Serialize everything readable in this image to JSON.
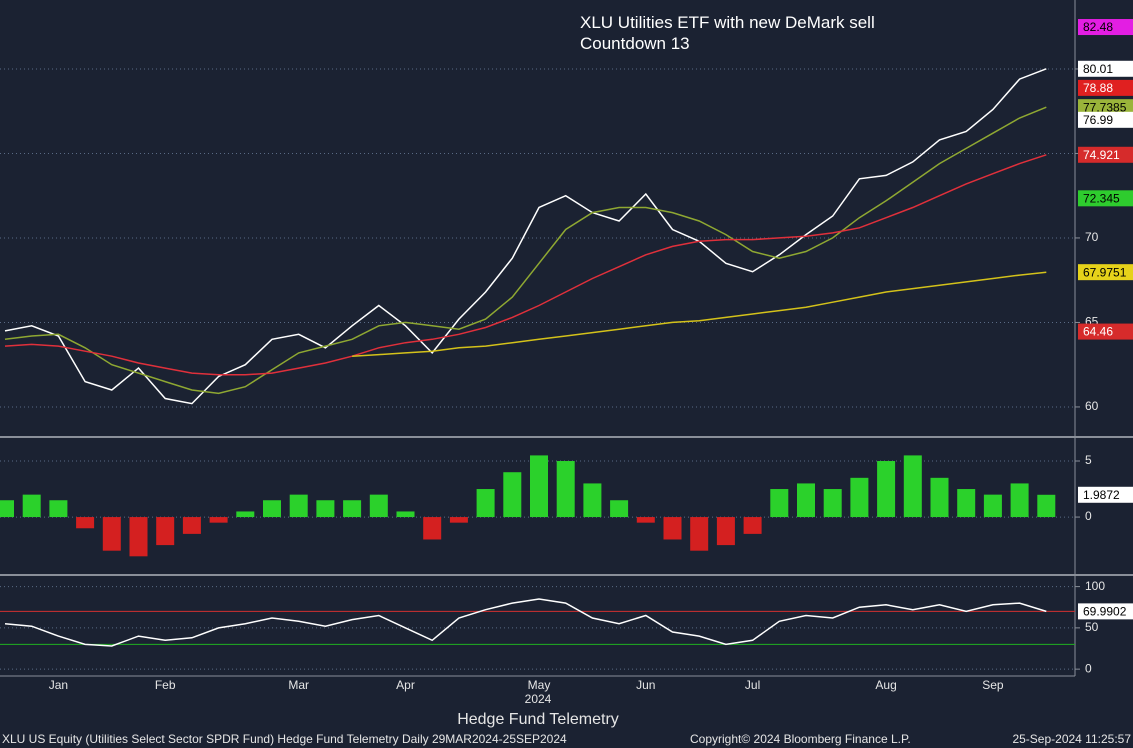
{
  "title": "XLU Utilities ETF with new DeMark sell Countdown 13",
  "caption": "Hedge Fund Telemetry",
  "xlabel": "2024",
  "footer": {
    "left": "XLU US Equity (Utilities Select Sector SPDR Fund) Hedge Fund Telemetry  Daily 29MAR2024-25SEP2024",
    "center": "Copyright© 2024 Bloomberg Finance L.P.",
    "right": "25-Sep-2024 11:25:57"
  },
  "chart_data": [
    {
      "type": "line",
      "categories": [
        null,
        null,
        "Jan",
        null,
        null,
        null,
        "Feb",
        null,
        null,
        null,
        null,
        "Mar",
        null,
        null,
        null,
        "Apr",
        null,
        null,
        null,
        null,
        "May",
        null,
        null,
        null,
        "Jun",
        null,
        null,
        null,
        "Jul",
        null,
        null,
        null,
        null,
        "Aug",
        null,
        null,
        null,
        "Sep",
        null,
        null
      ],
      "series": [
        {
          "color": "#ffffff",
          "values": [
            64.5,
            64.8,
            64.2,
            61.5,
            61.0,
            62.3,
            60.5,
            60.2,
            61.8,
            62.5,
            64.0,
            64.3,
            63.5,
            64.8,
            66.0,
            64.8,
            63.2,
            65.2,
            66.8,
            68.8,
            71.8,
            72.5,
            71.5,
            71.0,
            72.6,
            70.5,
            69.8,
            68.5,
            68.0,
            69.0,
            70.2,
            71.3,
            73.5,
            73.7,
            74.5,
            75.8,
            76.3,
            77.6,
            79.4,
            80.01
          ]
        },
        {
          "color": "#8fa832",
          "values": [
            64.0,
            64.2,
            64.3,
            63.5,
            62.5,
            62.0,
            61.5,
            61.0,
            60.8,
            61.2,
            62.2,
            63.2,
            63.6,
            64.0,
            64.8,
            65.0,
            64.8,
            64.6,
            65.2,
            66.5,
            68.5,
            70.5,
            71.5,
            71.8,
            71.8,
            71.5,
            71.0,
            70.2,
            69.2,
            68.8,
            69.2,
            70.0,
            71.2,
            72.2,
            73.3,
            74.4,
            75.3,
            76.2,
            77.1,
            77.7385
          ]
        },
        {
          "color": "#e0303b",
          "values": [
            63.6,
            63.7,
            63.6,
            63.3,
            63.0,
            62.6,
            62.3,
            62.0,
            61.9,
            61.9,
            62.0,
            62.3,
            62.6,
            63.0,
            63.5,
            63.8,
            64.0,
            64.3,
            64.7,
            65.3,
            66.0,
            66.8,
            67.6,
            68.3,
            69.0,
            69.5,
            69.8,
            69.9,
            69.9,
            70.0,
            70.1,
            70.3,
            70.6,
            71.2,
            71.8,
            72.5,
            73.2,
            73.8,
            74.4,
            74.921
          ]
        },
        {
          "color": "#d4c21a",
          "values": [
            null,
            null,
            null,
            null,
            null,
            null,
            null,
            null,
            null,
            null,
            null,
            null,
            null,
            63.0,
            63.1,
            63.2,
            63.3,
            63.5,
            63.6,
            63.8,
            64.0,
            64.2,
            64.4,
            64.6,
            64.8,
            65.0,
            65.1,
            65.3,
            65.5,
            65.7,
            65.9,
            66.2,
            66.5,
            66.8,
            67.0,
            67.2,
            67.4,
            67.6,
            67.8,
            67.9751
          ]
        }
      ],
      "ylim": [
        58.34,
        84.08
      ],
      "yticks": [
        60,
        65,
        70,
        75,
        80
      ],
      "grid": true,
      "tags": [
        {
          "value": 82.48,
          "color": "#e31ee3",
          "text_color": "#000000"
        },
        {
          "value": 80.01,
          "color": "#ffffff",
          "text_color": "#000000"
        },
        {
          "value": 78.88,
          "color": "#e02020",
          "text_color": "#ffffff"
        },
        {
          "value": 77.7385,
          "color": "#9ab43a",
          "text_color": "#000000"
        },
        {
          "value": 76.99,
          "color": "#ffffff",
          "text_color": "#000000"
        },
        {
          "value": 74.921,
          "color": "#d62b2b",
          "text_color": "#ffffff"
        },
        {
          "value": 72.345,
          "color": "#2ecc2e",
          "text_color": "#000000"
        },
        {
          "value": 67.9751,
          "color": "#e6d21a",
          "text_color": "#000000"
        },
        {
          "value": 64.46,
          "color": "#d62b2b",
          "text_color": "#ffffff"
        }
      ]
    },
    {
      "type": "bar",
      "categories": [
        null,
        null,
        "Jan",
        null,
        null,
        null,
        "Feb",
        null,
        null,
        null,
        null,
        "Mar",
        null,
        null,
        null,
        "Apr",
        null,
        null,
        null,
        null,
        "May",
        null,
        null,
        null,
        "Jun",
        null,
        null,
        null,
        "Jul",
        null,
        null,
        null,
        null,
        "Aug",
        null,
        null,
        null,
        "Sep",
        null,
        null
      ],
      "values": [
        1.5,
        2.0,
        1.5,
        -1.0,
        -3.0,
        -3.5,
        -2.5,
        -1.5,
        -0.5,
        0.5,
        1.5,
        2.0,
        1.5,
        1.5,
        2.0,
        0.5,
        -2.0,
        -0.5,
        2.5,
        4.0,
        5.5,
        5.0,
        3.0,
        1.5,
        -0.5,
        -2.0,
        -3.0,
        -2.5,
        -1.5,
        2.5,
        3.0,
        2.5,
        3.5,
        5.0,
        5.5,
        3.5,
        2.5,
        2.0,
        3.0,
        1.9872
      ],
      "color": "#2bd12b",
      "negative_color": "#d42020",
      "ylim": [
        -4.9,
        6.16
      ],
      "yticks": [
        0,
        5
      ],
      "grid": true,
      "tags": [
        {
          "value": 1.9872,
          "color": "#ffffff",
          "text_color": "#000000"
        }
      ]
    },
    {
      "type": "line",
      "categories": [
        null,
        null,
        "Jan",
        null,
        null,
        null,
        "Feb",
        null,
        null,
        null,
        null,
        "Mar",
        null,
        null,
        null,
        "Apr",
        null,
        null,
        null,
        null,
        "May",
        null,
        null,
        null,
        "Jun",
        null,
        null,
        null,
        "Jul",
        null,
        null,
        null,
        null,
        "Aug",
        null,
        null,
        null,
        "Sep",
        null,
        null
      ],
      "values": [
        55,
        52,
        40,
        30,
        28,
        40,
        35,
        38,
        50,
        55,
        62,
        58,
        52,
        60,
        65,
        50,
        35,
        62,
        72,
        80,
        85,
        80,
        62,
        55,
        65,
        45,
        40,
        30,
        35,
        58,
        65,
        62,
        75,
        78,
        72,
        78,
        70,
        78,
        80,
        69.9902
      ],
      "color": "#ffffff",
      "ylim": [
        -8.3,
        108
      ],
      "yticks": [
        0,
        50,
        100
      ],
      "grid": true,
      "hlines": [
        {
          "value": 70,
          "color": "#d03030"
        },
        {
          "value": 30,
          "color": "#20b020"
        }
      ],
      "tags": [
        {
          "value": 69.9902,
          "color": "#ffffff",
          "text_color": "#000000"
        }
      ]
    }
  ]
}
